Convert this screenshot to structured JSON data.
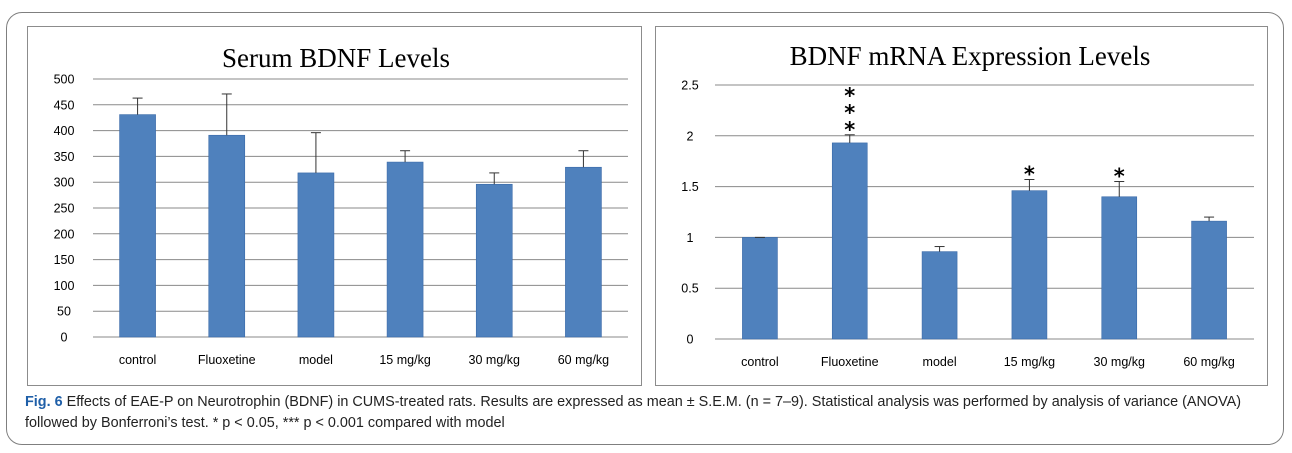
{
  "chart_data": [
    {
      "type": "bar",
      "title": "Serum BDNF Levels",
      "categories": [
        "control",
        "Fluoxetine",
        "model",
        "15 mg/kg",
        "30 mg/kg",
        "60 mg/kg"
      ],
      "values": [
        431,
        391,
        318,
        339,
        296,
        329
      ],
      "errors": [
        32,
        80,
        78,
        22,
        22,
        32
      ],
      "annotations": [
        "",
        "",
        "",
        "",
        "",
        ""
      ],
      "ylim": [
        0,
        500
      ],
      "yticks": [
        0,
        50,
        100,
        150,
        200,
        250,
        300,
        350,
        400,
        450,
        500
      ],
      "ytick_labels": [
        "0",
        "50",
        "100",
        "150",
        "200",
        "250",
        "300",
        "350",
        "400",
        "450",
        "500"
      ],
      "grid": true,
      "bar_color": "#4f81bd"
    },
    {
      "type": "bar",
      "title": "BDNF mRNA Expression Levels",
      "categories": [
        "control",
        "Fluoxetine",
        "model",
        "15 mg/kg",
        "30 mg/kg",
        "60 mg/kg"
      ],
      "values": [
        1.0,
        1.93,
        0.86,
        1.46,
        1.4,
        1.16
      ],
      "errors": [
        0.0,
        0.08,
        0.05,
        0.11,
        0.15,
        0.04
      ],
      "annotations": [
        "",
        "***",
        "",
        "*",
        "*",
        ""
      ],
      "ylim": [
        0,
        2.5
      ],
      "yticks": [
        0,
        0.5,
        1,
        1.5,
        2,
        2.5
      ],
      "ytick_labels": [
        "0",
        "0.5",
        "1",
        "1.5",
        "2",
        "2.5"
      ],
      "grid": true,
      "bar_color": "#4f81bd"
    }
  ],
  "caption": {
    "label": "Fig. 6",
    "text": " Effects of EAE-P on Neurotrophin (BDNF) in CUMS-treated rats. Results are expressed as mean ± S.E.M. (n = 7–9). Statistical analysis was performed by analysis of variance (ANOVA) followed by Bonferroni’s test. * p < 0.05, *** p < 0.001 compared with model"
  }
}
